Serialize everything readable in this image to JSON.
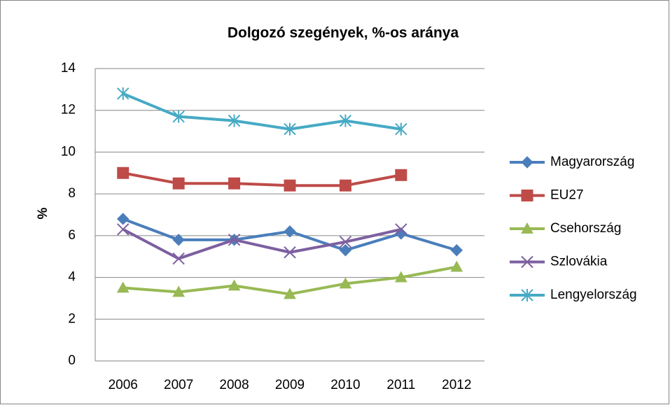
{
  "chart_data": {
    "type": "line",
    "title": "Dolgozó szegények, %-os aránya",
    "y_label": "%",
    "categories": [
      "2006",
      "2007",
      "2008",
      "2009",
      "2010",
      "2011",
      "2012"
    ],
    "ylim": [
      0,
      14
    ],
    "yticks": [
      0,
      2,
      4,
      6,
      8,
      10,
      12,
      14
    ],
    "grid": true,
    "legend": "right",
    "series": [
      {
        "name": "Magyarország",
        "color": "#4a7ebb",
        "marker": "diamond",
        "values": [
          6.8,
          5.8,
          5.8,
          6.2,
          5.3,
          6.1,
          5.3
        ]
      },
      {
        "name": "EU27",
        "color": "#be4b48",
        "marker": "square",
        "values": [
          9.0,
          8.5,
          8.5,
          8.4,
          8.4,
          8.9,
          null
        ]
      },
      {
        "name": "Csehország",
        "color": "#98b954",
        "marker": "triangle",
        "values": [
          3.5,
          3.3,
          3.6,
          3.2,
          3.7,
          4.0,
          4.5
        ]
      },
      {
        "name": "Szlovákia",
        "color": "#7d60a0",
        "marker": "x",
        "values": [
          6.3,
          4.9,
          5.8,
          5.2,
          5.7,
          6.3,
          null
        ]
      },
      {
        "name": "Lengyelország",
        "color": "#46aac5",
        "marker": "star",
        "values": [
          12.8,
          11.7,
          11.5,
          11.1,
          11.5,
          11.1,
          null
        ]
      }
    ]
  }
}
